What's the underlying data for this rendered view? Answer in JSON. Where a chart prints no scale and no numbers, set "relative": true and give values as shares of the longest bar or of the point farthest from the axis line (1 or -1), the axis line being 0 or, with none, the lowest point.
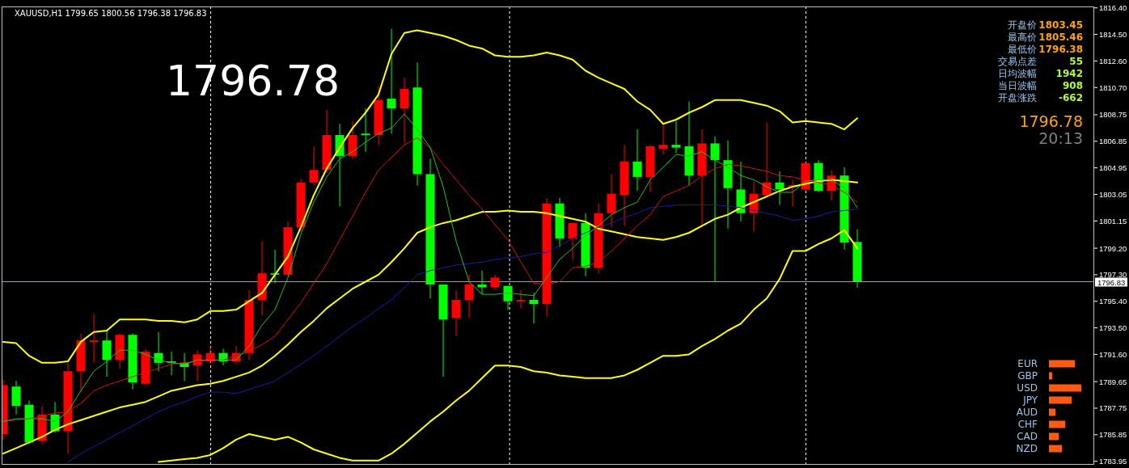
{
  "chart_data": [
    {
      "type": "candlestick",
      "title": "XAUUSD,H1  1799.65 1800.56 1796.38 1796.83",
      "categories": [
        null,
        null,
        null,
        null,
        null,
        null,
        null,
        null,
        null,
        null,
        null,
        null,
        null,
        null,
        null,
        null,
        null,
        null,
        null,
        null,
        null,
        null,
        null,
        null,
        null,
        null,
        null,
        null,
        null,
        null,
        null,
        null,
        null,
        null,
        null,
        null,
        null,
        null,
        null,
        null,
        null,
        null,
        null,
        null,
        null,
        null,
        null,
        null,
        null,
        null,
        null,
        null,
        null,
        null,
        null,
        null,
        null,
        null,
        null,
        null,
        null,
        null,
        null,
        null,
        null,
        null,
        null
      ],
      "ohlc": [
        [
          1785.9,
          1789.8,
          1785.5,
          1789.4
        ],
        [
          1789.3,
          1789.7,
          1787.3,
          1787.9
        ],
        [
          1788.0,
          1788.3,
          1785.2,
          1785.3
        ],
        [
          1785.4,
          1787.9,
          1785.2,
          1787.3
        ],
        [
          1787.3,
          1788.2,
          1786.0,
          1786.1
        ],
        [
          1786.1,
          1791.0,
          1784.5,
          1790.4
        ],
        [
          1790.4,
          1793.1,
          1788.9,
          1792.6
        ],
        [
          1792.5,
          1794.5,
          1791.0,
          1792.6
        ],
        [
          1792.6,
          1793.3,
          1790.0,
          1791.2
        ],
        [
          1791.2,
          1793.1,
          1790.6,
          1793.0
        ],
        [
          1793.0,
          1793.1,
          1789.1,
          1789.6
        ],
        [
          1789.5,
          1792.0,
          1789.4,
          1791.8
        ],
        [
          1791.7,
          1793.2,
          1790.4,
          1791.0
        ],
        [
          1791.1,
          1791.8,
          1790.1,
          1791.0
        ],
        [
          1791.0,
          1791.7,
          1789.7,
          1790.7
        ],
        [
          1790.8,
          1791.9,
          1789.7,
          1791.6
        ],
        [
          1791.1,
          1792.2,
          1790.9,
          1791.7
        ],
        [
          1791.7,
          1792.0,
          1790.8,
          1791.1
        ],
        [
          1791.1,
          1792.2,
          1790.9,
          1791.7
        ],
        [
          1791.7,
          1796.2,
          1791.2,
          1795.5
        ],
        [
          1795.5,
          1799.7,
          1794.4,
          1797.4
        ],
        [
          1797.4,
          1799.1,
          1796.7,
          1797.3
        ],
        [
          1797.3,
          1801.1,
          1797.2,
          1800.7
        ],
        [
          1800.7,
          1804.2,
          1800.4,
          1803.9
        ],
        [
          1803.9,
          1806.5,
          1803.7,
          1804.8
        ],
        [
          1804.8,
          1809.1,
          1804.6,
          1807.3
        ],
        [
          1807.3,
          1808.1,
          1802.2,
          1805.8
        ],
        [
          1805.8,
          1808.3,
          1805.6,
          1807.3
        ],
        [
          1807.4,
          1809.2,
          1806.1,
          1807.3
        ],
        [
          1807.3,
          1810.8,
          1806.6,
          1809.8
        ],
        [
          1809.9,
          1814.9,
          1807.4,
          1809.2
        ],
        [
          1809.2,
          1811.4,
          1806.7,
          1810.6
        ],
        [
          1810.7,
          1812.5,
          1803.7,
          1804.5
        ],
        [
          1804.5,
          1805.6,
          1795.6,
          1796.6
        ],
        [
          1796.6,
          1796.6,
          1790.0,
          1794.1
        ],
        [
          1794.2,
          1796.2,
          1792.9,
          1795.5
        ],
        [
          1795.5,
          1797.3,
          1794.2,
          1796.6
        ],
        [
          1796.6,
          1797.6,
          1795.9,
          1796.4
        ],
        [
          1796.4,
          1797.3,
          1796.2,
          1797.1
        ],
        [
          1796.5,
          1796.5,
          1794.8,
          1795.4
        ],
        [
          1795.4,
          1796.2,
          1794.9,
          1795.5
        ],
        [
          1795.5,
          1796.0,
          1793.8,
          1795.2
        ],
        [
          1795.2,
          1802.8,
          1794.3,
          1802.4
        ],
        [
          1802.4,
          1802.8,
          1799.3,
          1799.9
        ],
        [
          1799.9,
          1801.0,
          1798.4,
          1801.0
        ],
        [
          1801.0,
          1801.7,
          1797.2,
          1797.8
        ],
        [
          1797.8,
          1802.4,
          1797.4,
          1801.7
        ],
        [
          1801.7,
          1804.5,
          1800.7,
          1803.1
        ],
        [
          1803.0,
          1806.6,
          1800.8,
          1805.4
        ],
        [
          1805.4,
          1807.7,
          1803.3,
          1804.3
        ],
        [
          1804.3,
          1806.6,
          1803.2,
          1806.5
        ],
        [
          1806.3,
          1808.1,
          1805.9,
          1806.6
        ],
        [
          1806.6,
          1808.3,
          1806.0,
          1806.4
        ],
        [
          1806.5,
          1809.7,
          1803.7,
          1804.4
        ],
        [
          1804.4,
          1807.7,
          1800.7,
          1806.7
        ],
        [
          1806.7,
          1807.2,
          1796.8,
          1805.5
        ],
        [
          1805.5,
          1806.9,
          1800.6,
          1803.5
        ],
        [
          1803.4,
          1805.4,
          1801.1,
          1801.7
        ],
        [
          1801.7,
          1804.0,
          1800.4,
          1803.1
        ],
        [
          1803.0,
          1808.2,
          1803.0,
          1803.9
        ],
        [
          1803.9,
          1804.7,
          1802.3,
          1803.4
        ],
        [
          1803.6,
          1804.1,
          1802.2,
          1803.7
        ],
        [
          1803.4,
          1805.3,
          1803.3,
          1805.3
        ],
        [
          1805.3,
          1805.5,
          1803.2,
          1803.3
        ],
        [
          1803.3,
          1804.8,
          1802.6,
          1804.4
        ],
        [
          1804.4,
          1805.0,
          1799.1,
          1799.6
        ],
        [
          1799.65,
          1800.56,
          1796.38,
          1796.83
        ]
      ],
      "colors": [
        "#ff0000",
        "#00ff00",
        "#00ff00",
        "#ff0000",
        "#00ff00",
        "#ff0000",
        "#ff0000",
        "#ff0000",
        "#00ff00",
        "#ff0000",
        "#00ff00",
        "#ff0000",
        "#00ff00",
        "#00ff00",
        "#00ff00",
        "#ff0000",
        "#ff0000",
        "#00ff00",
        "#ff0000",
        "#ff0000",
        "#ff0000",
        "#00ff00",
        "#ff0000",
        "#ff0000",
        "#ff0000",
        "#ff0000",
        "#00ff00",
        "#ff0000",
        "#00ff00",
        "#ff0000",
        "#00ff00",
        "#ff0000",
        "#00ff00",
        "#00ff00",
        "#00ff00",
        "#ff0000",
        "#ff0000",
        "#00ff00",
        "#ff0000",
        "#00ff00",
        "#ff0000",
        "#00ff00",
        "#ff0000",
        "#00ff00",
        "#ff0000",
        "#00ff00",
        "#ff0000",
        "#ff0000",
        "#ff0000",
        "#00ff00",
        "#ff0000",
        "#ff0000",
        "#00ff00",
        "#00ff00",
        "#ff0000",
        "#00ff00",
        "#00ff00",
        "#00ff00",
        "#ff0000",
        "#ff0000",
        "#00ff00",
        "#ff0000",
        "#ff0000",
        "#00ff00",
        "#ff0000",
        "#00ff00",
        "#00ff00"
      ],
      "series": [
        {
          "type": "line",
          "color": "#ffff00",
          "values": [
            1792.5,
            1792.4,
            1791.5,
            1791.0,
            1791.0,
            1791.1,
            1792.5,
            1793.2,
            1793.3,
            1794.1,
            1794.1,
            1794.1,
            1794.0,
            1794.0,
            1793.9,
            1794.1,
            1794.7,
            1794.7,
            1794.8,
            1795.4,
            1796.0,
            1797.3,
            1798.6,
            1800.7,
            1803.0,
            1804.9,
            1806.4,
            1807.8,
            1808.9,
            1810.2,
            1813.1,
            1814.6,
            1814.8,
            1814.6,
            1814.4,
            1814.1,
            1813.7,
            1813.5,
            1813.0,
            1812.9,
            1812.9,
            1813.0,
            1813.2,
            1813.0,
            1812.7,
            1811.9,
            1811.4,
            1811.0,
            1810.6,
            1809.7,
            1809.1,
            1808.1,
            1808.4,
            1808.9,
            1809.3,
            1809.8,
            1809.8,
            1809.8,
            1809.6,
            1809.4,
            1809.0,
            1808.2,
            1808.3,
            1808.2,
            1808.1,
            1807.7,
            1808.5
          ]
        },
        {
          "type": "line",
          "color": "#ffff00",
          "values": [
            1784.5,
            1784.9,
            1785.3,
            1785.7,
            1786.2,
            1786.6,
            1786.9,
            1787.2,
            1787.5,
            1787.8,
            1788.0,
            1788.2,
            1788.6,
            1789.0,
            1789.2,
            1789.4,
            1789.5,
            1789.7,
            1790.0,
            1790.3,
            1790.8,
            1791.5,
            1792.3,
            1793.2,
            1794.0,
            1794.9,
            1795.6,
            1796.3,
            1796.8,
            1797.3,
            1798.2,
            1799.2,
            1800.3,
            1800.7,
            1801.0,
            1801.2,
            1801.5,
            1801.8,
            1801.8,
            1801.9,
            1801.8,
            1801.8,
            1801.7,
            1801.5,
            1801.3,
            1801.1,
            1800.6,
            1800.4,
            1800.2,
            1800.0,
            1799.9,
            1799.8,
            1800.0,
            1800.3,
            1800.8,
            1801.3,
            1801.6,
            1802.1,
            1802.5,
            1802.9,
            1803.3,
            1803.6,
            1803.8,
            1804.0,
            1804.1,
            1804.0,
            1803.9
          ]
        },
        {
          "type": "line",
          "color": "#ffff00",
          "values": [
            null,
            null,
            null,
            null,
            null,
            null,
            null,
            null,
            null,
            null,
            null,
            null,
            1783.9,
            1784.0,
            1784.1,
            1784.2,
            1784.4,
            1784.9,
            1785.5,
            1785.9,
            1785.7,
            1785.5,
            1785.7,
            1785.3,
            1784.8,
            1784.5,
            1784.2,
            1784.0,
            1784.0,
            1784.0,
            1784.5,
            1785.2,
            1786.0,
            1786.8,
            1787.5,
            1788.3,
            1789.0,
            1789.9,
            1790.8,
            1790.8,
            1790.7,
            1790.4,
            1790.3,
            1790.1,
            1790.0,
            1789.9,
            1789.9,
            1789.9,
            1790.1,
            1790.5,
            1791.0,
            1791.5,
            1791.5,
            1791.6,
            1792.2,
            1792.7,
            1793.3,
            1793.8,
            1794.8,
            1795.6,
            1797.0,
            1799.0,
            1799.0,
            1799.5,
            1799.9,
            1800.5,
            1799.2
          ]
        },
        {
          "type": "line",
          "color": "#1a1aa8",
          "values": [
            null,
            null,
            null,
            null,
            null,
            1783.9,
            1784.5,
            1785.0,
            1785.5,
            1786.0,
            1786.5,
            1787.0,
            1787.5,
            1787.9,
            1788.2,
            1788.6,
            1788.9,
            1788.9,
            1788.8,
            1789.1,
            1789.4,
            1789.7,
            1790.3,
            1790.9,
            1791.5,
            1792.2,
            1792.9,
            1793.6,
            1794.2,
            1794.9,
            1795.5,
            1796.4,
            1797.3,
            1797.6,
            1797.8,
            1798.0,
            1798.1,
            1798.2,
            1798.4,
            1798.5,
            1798.6,
            1798.8,
            1798.9,
            1799.4,
            1799.9,
            1800.3,
            1800.7,
            1801.0,
            1801.4,
            1801.7,
            1802.1,
            1802.2,
            1802.3,
            1802.3,
            1802.3,
            1802.3,
            1802.2,
            1802.1,
            1801.9,
            1801.7,
            1801.5,
            1801.2,
            1801.3,
            1801.5,
            1801.8,
            1801.9,
            1802.0
          ]
        },
        {
          "type": "line",
          "color": "#d01010",
          "values": [
            1786.8,
            1786.9,
            1787.0,
            1787.2,
            1787.4,
            1787.5,
            1788.1,
            1789.0,
            1789.4,
            1789.7,
            1790.0,
            1790.3,
            1790.6,
            1790.9,
            1791.0,
            1791.1,
            1791.2,
            1791.2,
            1791.5,
            1791.8,
            1792.3,
            1792.9,
            1794.1,
            1795.3,
            1796.7,
            1798.1,
            1799.8,
            1801.5,
            1803.2,
            1804.8,
            1805.7,
            1806.6,
            1807.1,
            1806.4,
            1805.2,
            1804.1,
            1803.0,
            1802.0,
            1800.9,
            1799.8,
            1798.2,
            1796.7,
            1796.6,
            1796.8,
            1797.8,
            1797.9,
            1798.2,
            1799.0,
            1799.9,
            1800.8,
            1801.6,
            1802.9,
            1803.3,
            1803.7,
            1804.4,
            1804.9,
            1805.2,
            1805.1,
            1804.9,
            1804.7,
            1804.4,
            1804.3,
            1804.1,
            1803.9,
            1803.7,
            1803.2,
            1802.5
          ]
        },
        {
          "type": "line",
          "color": "#20c020",
          "values": [
            1786.8,
            1787.0,
            1787.0,
            1787.0,
            1786.8,
            1787.5,
            1789.0,
            1790.4,
            1791.1,
            1791.9,
            1791.9,
            1791.6,
            1791.2,
            1791.0,
            1790.9,
            1791.2,
            1791.2,
            1791.2,
            1791.2,
            1792.2,
            1793.7,
            1794.8,
            1797.1,
            1800.2,
            1802.5,
            1804.3,
            1805.6,
            1806.1,
            1806.8,
            1807.4,
            1807.8,
            1808.8,
            1807.7,
            1806.4,
            1803.6,
            1799.7,
            1796.8,
            1795.9,
            1795.9,
            1796.0,
            1795.9,
            1795.8,
            1797.1,
            1798.4,
            1799.2,
            1800.1,
            1800.8,
            1801.6,
            1802.1,
            1802.5,
            1804.1,
            1805.0,
            1805.9,
            1805.8,
            1806.1,
            1805.5,
            1805.0,
            1804.4,
            1804.1,
            1803.6,
            1803.2,
            1803.2,
            1804.0,
            1804.1,
            1804.1,
            1803.5,
            1802.1
          ]
        }
      ],
      "ylim": [
        1783.7,
        1816.5
      ],
      "yticks": [
        {
          "value": 1816.4,
          "label": "1816.40"
        },
        {
          "value": 1814.5,
          "label": "1814.50"
        },
        {
          "value": 1812.6,
          "label": "1812.60"
        },
        {
          "value": 1810.7,
          "label": "1810.70"
        },
        1808.75,
        1806.85,
        1804.95,
        1803.05,
        1801.15,
        {
          "value": 1799.2,
          "label": "1799.20"
        },
        {
          "value": 1797.3,
          "label": "1797.30"
        },
        {
          "value": 1795.4,
          "label": "1795.40"
        },
        {
          "value": 1793.5,
          "label": "1793.50"
        },
        {
          "value": 1791.6,
          "label": "1791.60"
        },
        1789.65,
        1787.75,
        1785.85,
        1783.95
      ],
      "tick_labels": "y",
      "annotations": [
        "1796.78"
      ],
      "grid": "x",
      "ref_lines": [
        {
          "axis": "y",
          "value": 1796.83,
          "label": "1796.83",
          "color": "#a0a0b0"
        }
      ]
    },
    {
      "type": "other",
      "annotations": [
        "开盘价",
        "1803.45",
        "最高价",
        "1805.46",
        "最低价",
        "1796.38",
        "交易点差",
        "55",
        "日均波幅",
        "1942",
        "当日波幅",
        "908",
        "开盘涨跌",
        "-662",
        "1796.78",
        "20:13"
      ]
    },
    {
      "type": "bar",
      "orientation": "horizontal",
      "relative": true,
      "categories": [
        "EUR",
        "GBP",
        "USD",
        "JPY",
        "AUD",
        "CHF",
        "CAD",
        "NZD"
      ],
      "values": [
        0.8,
        0.1,
        1,
        0.7,
        0.2,
        0.5,
        0.3,
        0.4
      ],
      "color": "#ff5a10"
    }
  ]
}
